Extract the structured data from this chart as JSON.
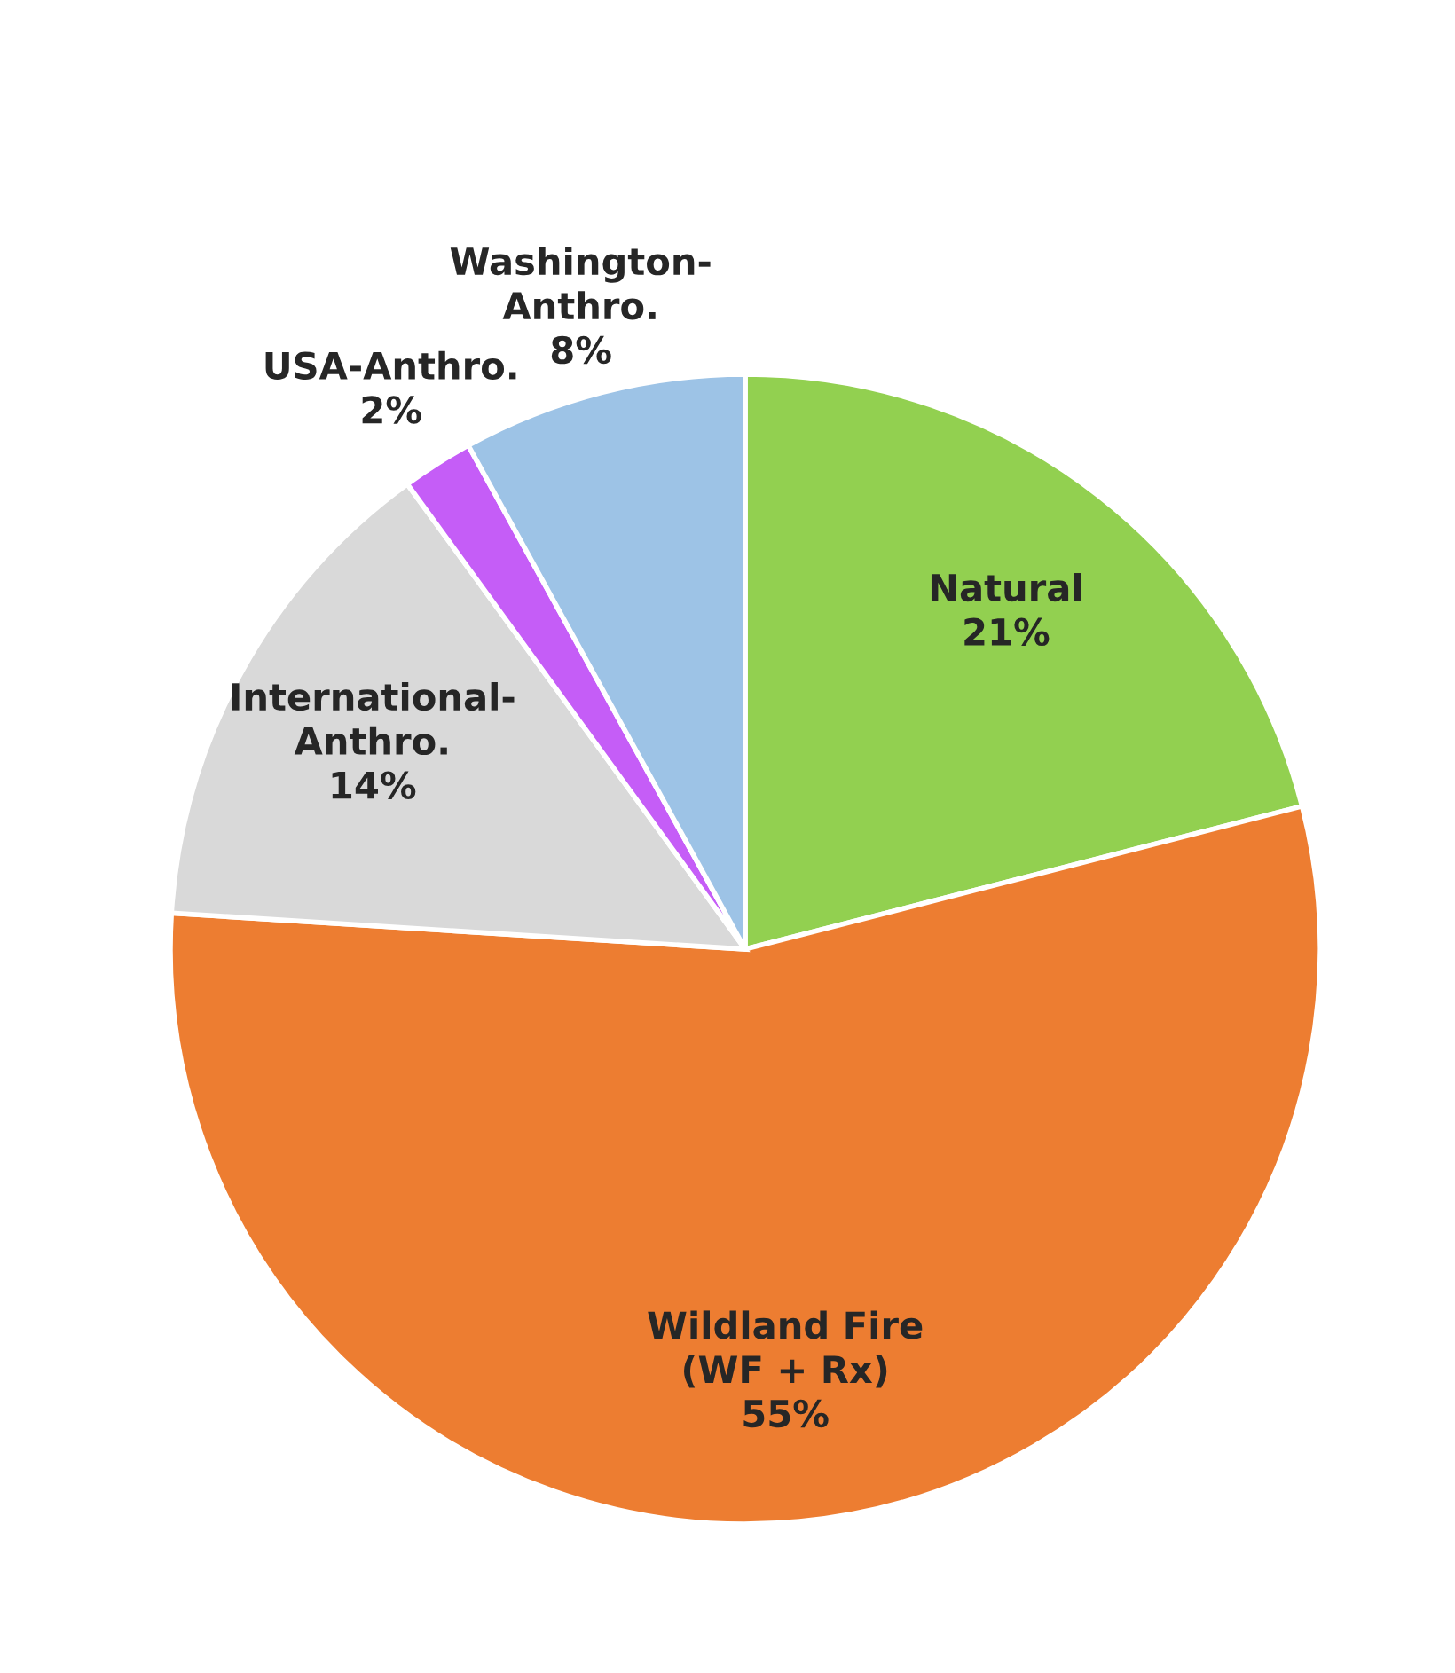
{
  "chart_data": {
    "type": "pie",
    "categories": [
      "Natural",
      "Wildland Fire\n(WF + Rx)",
      "International-\nAnthro.",
      "USA-Anthro.",
      "Washington-\nAnthro."
    ],
    "values": [
      21,
      55,
      14,
      2,
      8
    ],
    "colors": [
      "#92d050",
      "#ed7d31",
      "#d9d9d9",
      "#c55df7",
      "#9dc3e6"
    ],
    "value_labels": [
      "21%",
      "55%",
      "14%",
      "2%",
      "8%"
    ],
    "legend": false
  }
}
